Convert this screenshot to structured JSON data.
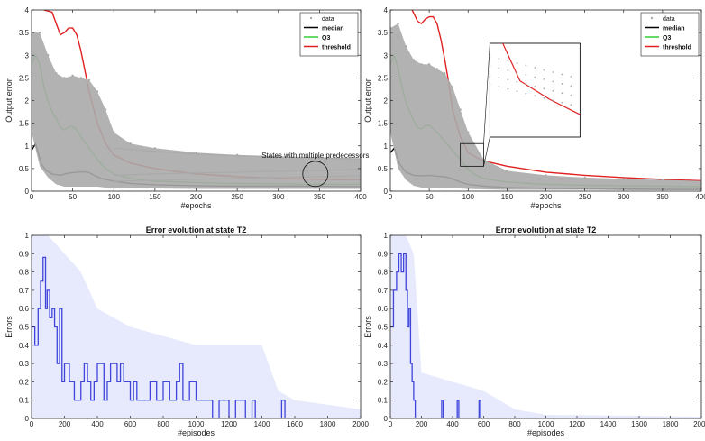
{
  "chart_data": [
    {
      "id": "tl",
      "type": "line",
      "title": "",
      "xlabel": "#epochs",
      "ylabel": "Output error",
      "xlim": [
        0,
        400
      ],
      "ylim": [
        0,
        4
      ],
      "xticks": [
        0,
        50,
        100,
        150,
        200,
        250,
        300,
        350,
        400
      ],
      "yticks": [
        0,
        0.5,
        1,
        1.5,
        2,
        2.5,
        3,
        3.5,
        4
      ],
      "xtick_labels": [
        "0",
        "50",
        "100",
        "150",
        "200",
        "250",
        "300",
        "350",
        "400"
      ],
      "ytick_labels": [
        "0",
        "0.5",
        "1",
        "1.5",
        "2",
        "2.5",
        "3",
        "3.5",
        "4"
      ],
      "legend": {
        "position": "top-right",
        "entries": [
          {
            "label": "data",
            "color": "#aaaaaa",
            "style": "marker"
          },
          {
            "label": "median",
            "color": "#000000",
            "style": "line"
          },
          {
            "label": "Q3",
            "color": "#33cc33",
            "style": "line"
          },
          {
            "label": "threshold",
            "color": "#e02020",
            "style": "line"
          }
        ]
      },
      "annotation": {
        "text": "States with multiple predecessors",
        "x": 345,
        "y": 0.66
      },
      "series": [
        {
          "name": "median",
          "color": "#000000",
          "x": [
            0,
            5,
            8,
            12,
            18,
            25,
            35,
            45,
            55,
            65,
            70,
            75,
            85,
            100,
            120,
            150,
            200,
            250,
            300,
            350,
            400
          ],
          "y": [
            0.9,
            1.05,
            0.85,
            0.6,
            0.45,
            0.38,
            0.35,
            0.4,
            0.42,
            0.43,
            0.41,
            0.36,
            0.28,
            0.22,
            0.17,
            0.14,
            0.12,
            0.11,
            0.11,
            0.11,
            0.1
          ]
        },
        {
          "name": "Q3",
          "color": "#33cc33",
          "x": [
            0,
            5,
            10,
            15,
            20,
            25,
            30,
            35,
            40,
            45,
            50,
            55,
            60,
            70,
            80,
            90,
            100,
            120,
            150,
            200,
            250,
            300,
            350,
            400
          ],
          "y": [
            2.8,
            3.0,
            2.8,
            2.3,
            2.0,
            1.75,
            1.6,
            1.4,
            1.35,
            1.42,
            1.43,
            1.35,
            1.2,
            0.95,
            0.7,
            0.5,
            0.38,
            0.28,
            0.22,
            0.19,
            0.17,
            0.16,
            0.15,
            0.15
          ]
        },
        {
          "name": "threshold",
          "color": "#e02020",
          "x": [
            15,
            25,
            30,
            35,
            40,
            45,
            50,
            55,
            60,
            70,
            80,
            90,
            100,
            120,
            150,
            200,
            250,
            300,
            350,
            400
          ],
          "y": [
            4.0,
            3.95,
            3.7,
            3.45,
            3.5,
            3.6,
            3.6,
            3.45,
            3.1,
            2.2,
            1.5,
            1.05,
            0.8,
            0.62,
            0.5,
            0.38,
            0.32,
            0.28,
            0.26,
            0.25
          ]
        },
        {
          "name": "data",
          "color": "#aaaaaa",
          "style": "band",
          "x": [
            0,
            10,
            20,
            30,
            40,
            50,
            60,
            70,
            80,
            90,
            100,
            120,
            150,
            200,
            250,
            300,
            350,
            400
          ],
          "y_lower": [
            1.3,
            0.55,
            0.3,
            0.15,
            0.1,
            0.1,
            0.1,
            0.1,
            0.1,
            0.08,
            0.08,
            0.07,
            0.06,
            0.05,
            0.05,
            0.05,
            0.05,
            0.05
          ],
          "y_upper": [
            3.5,
            3.5,
            3.0,
            2.6,
            2.5,
            2.55,
            2.5,
            2.45,
            2.2,
            1.8,
            1.3,
            1.05,
            0.95,
            0.85,
            0.8,
            0.77,
            0.75,
            0.73
          ]
        },
        {
          "name": "",
          "color": "#aaaaaa",
          "x": [
            100,
            150,
            200,
            250,
            300,
            350,
            400
          ],
          "y": [
            0.95,
            0.88,
            0.82,
            0.78,
            0.75,
            0.73,
            0.71
          ]
        },
        {
          "name": "",
          "color": "#aaaaaa",
          "x": [
            100,
            150,
            200,
            250,
            300,
            350,
            400
          ],
          "y": [
            0.35,
            0.38,
            0.4,
            0.42,
            0.44,
            0.46,
            0.48
          ]
        },
        {
          "name": "",
          "color": "#aaaaaa",
          "x": [
            100,
            150,
            200,
            250,
            300,
            350,
            400
          ],
          "y": [
            0.22,
            0.24,
            0.26,
            0.28,
            0.3,
            0.32,
            0.34
          ]
        }
      ]
    },
    {
      "id": "tr",
      "type": "line",
      "title": "",
      "xlabel": "#epochs",
      "ylabel": "Output error",
      "xlim": [
        0,
        400
      ],
      "ylim": [
        0,
        4
      ],
      "xticks": [
        0,
        50,
        100,
        150,
        200,
        250,
        300,
        350,
        400
      ],
      "yticks": [
        0,
        0.5,
        1,
        1.5,
        2,
        2.5,
        3,
        3.5,
        4
      ],
      "xtick_labels": [
        "0",
        "50",
        "100",
        "150",
        "200",
        "250",
        "300",
        "350",
        "400"
      ],
      "ytick_labels": [
        "0",
        "0.5",
        "1",
        "1.5",
        "2",
        "2.5",
        "3",
        "3.5",
        "4"
      ],
      "legend": {
        "position": "top-right",
        "entries": [
          {
            "label": "data",
            "color": "#aaaaaa",
            "style": "marker"
          },
          {
            "label": "median",
            "color": "#000000",
            "style": "line"
          },
          {
            "label": "Q3",
            "color": "#33cc33",
            "style": "line"
          },
          {
            "label": "threshold",
            "color": "#e02020",
            "style": "line"
          }
        ]
      },
      "zoom_box": {
        "x_range": [
          90,
          120
        ],
        "y_range": [
          0.55,
          1.05
        ]
      },
      "series": [
        {
          "name": "median",
          "color": "#000000",
          "x": [
            0,
            5,
            8,
            12,
            20,
            30,
            40,
            50,
            60,
            70,
            80,
            90,
            100,
            120,
            150,
            200,
            250,
            300,
            350,
            400
          ],
          "y": [
            0.85,
            0.95,
            0.8,
            0.6,
            0.42,
            0.35,
            0.34,
            0.35,
            0.33,
            0.32,
            0.27,
            0.2,
            0.15,
            0.11,
            0.08,
            0.06,
            0.05,
            0.05,
            0.04,
            0.04
          ]
        },
        {
          "name": "Q3",
          "color": "#33cc33",
          "x": [
            0,
            5,
            10,
            15,
            20,
            25,
            30,
            35,
            40,
            45,
            50,
            60,
            70,
            80,
            90,
            100,
            110,
            120,
            150,
            200,
            250,
            300,
            350,
            400
          ],
          "y": [
            2.8,
            3.0,
            2.7,
            2.3,
            1.95,
            1.75,
            1.55,
            1.4,
            1.38,
            1.45,
            1.45,
            1.3,
            1.1,
            0.9,
            0.7,
            0.48,
            0.35,
            0.28,
            0.2,
            0.15,
            0.13,
            0.12,
            0.11,
            0.1
          ]
        },
        {
          "name": "threshold",
          "color": "#e02020",
          "x": [
            28,
            35,
            40,
            45,
            50,
            55,
            60,
            65,
            70,
            75,
            80,
            90,
            100,
            110,
            120,
            150,
            200,
            250,
            300,
            350,
            400
          ],
          "y": [
            4.0,
            3.75,
            3.7,
            3.8,
            3.85,
            3.85,
            3.7,
            3.35,
            2.9,
            2.4,
            1.8,
            1.2,
            0.85,
            0.75,
            0.67,
            0.55,
            0.42,
            0.35,
            0.3,
            0.26,
            0.23
          ]
        },
        {
          "name": "data",
          "color": "#aaaaaa",
          "style": "band",
          "x": [
            0,
            10,
            20,
            30,
            40,
            50,
            60,
            70,
            80,
            90,
            100,
            120,
            150,
            200,
            250,
            300,
            350,
            400
          ],
          "y_lower": [
            1.3,
            0.5,
            0.25,
            0.12,
            0.08,
            0.08,
            0.08,
            0.07,
            0.07,
            0.06,
            0.05,
            0.04,
            0.03,
            0.03,
            0.03,
            0.02,
            0.02,
            0.02
          ],
          "y_upper": [
            3.6,
            3.7,
            3.2,
            2.9,
            2.8,
            2.8,
            2.7,
            2.6,
            2.3,
            1.8,
            1.3,
            0.7,
            0.45,
            0.35,
            0.3,
            0.27,
            0.25,
            0.23
          ]
        }
      ]
    },
    {
      "id": "bl",
      "type": "line",
      "title": "Error evolution at state T2",
      "xlabel": "#episodes",
      "ylabel": "Errors",
      "xlim": [
        0,
        2000
      ],
      "ylim": [
        0,
        1
      ],
      "xticks": [
        0,
        200,
        400,
        600,
        800,
        1000,
        1200,
        1400,
        1600,
        1800,
        2000
      ],
      "yticks": [
        0,
        0.1,
        0.2,
        0.3,
        0.4,
        0.5,
        0.6,
        0.7,
        0.8,
        0.9,
        1
      ],
      "xtick_labels": [
        "0",
        "200",
        "400",
        "600",
        "800",
        "1000",
        "1200",
        "1400",
        "1600",
        "1800",
        "2000"
      ],
      "ytick_labels": [
        "0",
        "0.1",
        "0.2",
        "0.3",
        "0.4",
        "0.5",
        "0.6",
        "0.7",
        "0.8",
        "0.9",
        "1"
      ],
      "series": [
        {
          "name": "",
          "color": "#0000cc",
          "style": "step",
          "x": [
            0,
            20,
            40,
            55,
            70,
            85,
            95,
            110,
            125,
            140,
            155,
            170,
            185,
            200,
            230,
            260,
            300,
            320,
            340,
            360,
            380,
            400,
            440,
            460,
            480,
            520,
            540,
            560,
            600,
            620,
            640,
            700,
            720,
            760,
            800,
            840,
            880,
            900,
            920,
            960,
            1000,
            1040,
            1100,
            1140,
            1200,
            1240,
            1300,
            1340,
            1360,
            1400,
            1520,
            1540,
            1560,
            1600,
            1800,
            2000
          ],
          "y": [
            0.5,
            0.4,
            0.6,
            0.75,
            0.88,
            0.6,
            0.7,
            0.55,
            0.6,
            0.5,
            0.3,
            0.6,
            0.2,
            0.3,
            0.2,
            0.1,
            0.2,
            0.3,
            0.2,
            0.1,
            0.2,
            0.3,
            0.1,
            0.2,
            0.3,
            0.2,
            0.3,
            0.2,
            0.1,
            0.2,
            0.1,
            0.1,
            0.2,
            0.1,
            0.2,
            0.1,
            0.2,
            0.3,
            0.1,
            0.2,
            0.1,
            0.1,
            0,
            0.1,
            0,
            0.1,
            0,
            0.1,
            0,
            0,
            0.1,
            0,
            0,
            0,
            0,
            0
          ]
        },
        {
          "name": "",
          "color": "#b8c4f5",
          "style": "band",
          "x": [
            0,
            100,
            200,
            300,
            400,
            600,
            800,
            1000,
            1200,
            1400,
            1500,
            1600,
            2000
          ],
          "y_upper": [
            1,
            1,
            0.9,
            0.8,
            0.6,
            0.5,
            0.45,
            0.4,
            0.4,
            0.4,
            0.15,
            0.1,
            0.05
          ]
        }
      ]
    },
    {
      "id": "br",
      "type": "line",
      "title": "Error evolution at state T2",
      "xlabel": "#episodes",
      "ylabel": "Errors",
      "xlim": [
        0,
        2000
      ],
      "ylim": [
        0,
        1
      ],
      "xticks": [
        0,
        200,
        400,
        600,
        800,
        1000,
        1200,
        1400,
        1600,
        1800,
        2000
      ],
      "yticks": [
        0,
        0.1,
        0.2,
        0.3,
        0.4,
        0.5,
        0.6,
        0.7,
        0.8,
        0.9,
        1
      ],
      "xtick_labels": [
        "0",
        "200",
        "400",
        "600",
        "800",
        "1000",
        "1200",
        "1400",
        "1600",
        "1800",
        "2000"
      ],
      "ytick_labels": [
        "0",
        "0.1",
        "0.2",
        "0.3",
        "0.4",
        "0.5",
        "0.6",
        "0.7",
        "0.8",
        "0.9",
        "1"
      ],
      "series": [
        {
          "name": "",
          "color": "#0000cc",
          "style": "step",
          "x": [
            0,
            20,
            40,
            55,
            70,
            85,
            100,
            110,
            120,
            130,
            140,
            150,
            160,
            200,
            320,
            330,
            340,
            420,
            430,
            440,
            560,
            570,
            580,
            600,
            2000
          ],
          "y": [
            0.5,
            0.7,
            0.8,
            0.9,
            0.8,
            0.9,
            0.7,
            0.5,
            0.6,
            0.3,
            0.2,
            0.1,
            0,
            0,
            0,
            0.1,
            0,
            0,
            0.1,
            0,
            0,
            0.1,
            0,
            0,
            0
          ]
        },
        {
          "name": "",
          "color": "#b8c4f5",
          "style": "band",
          "x": [
            0,
            100,
            150,
            200,
            400,
            600,
            800,
            1000,
            2000
          ],
          "y_upper": [
            1,
            1,
            0.9,
            0.25,
            0.2,
            0.15,
            0.05,
            0.02,
            0.01
          ]
        }
      ]
    }
  ]
}
